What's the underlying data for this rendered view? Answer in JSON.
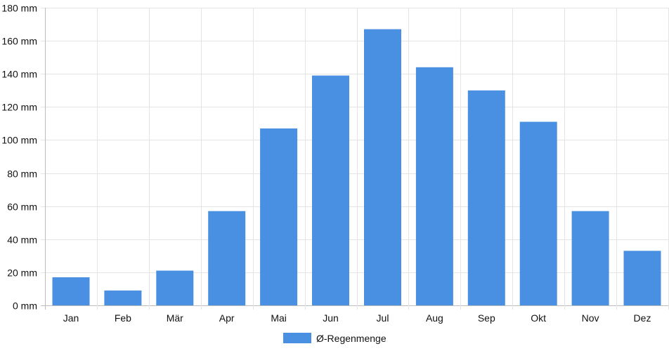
{
  "chart_data": {
    "type": "bar",
    "categories": [
      "Jan",
      "Feb",
      "Mär",
      "Apr",
      "Mai",
      "Jun",
      "Jul",
      "Aug",
      "Sep",
      "Okt",
      "Nov",
      "Dez"
    ],
    "series": [
      {
        "name": "Ø-Regenmenge",
        "values": [
          17,
          9,
          21,
          57,
          107,
          139,
          167,
          144,
          130,
          111,
          57,
          33
        ],
        "color": "#4a90e2"
      }
    ],
    "y_ticks": [
      "0 mm",
      "20 mm",
      "40 mm",
      "60 mm",
      "80 mm",
      "100 mm",
      "120 mm",
      "140 mm",
      "160 mm",
      "180 mm"
    ],
    "ylim": [
      0,
      180
    ],
    "y_step": 20,
    "grid": true,
    "legend_position": "bottom"
  }
}
